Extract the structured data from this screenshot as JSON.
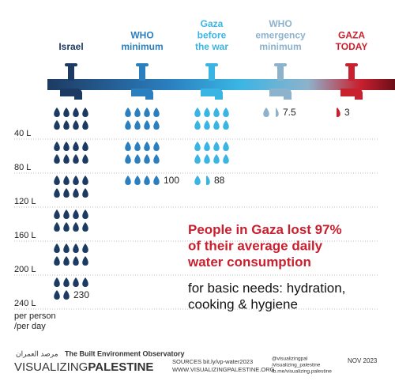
{
  "chart_data": {
    "type": "pictogram",
    "categories": [
      "Israel",
      "WHO\nminimum",
      "Gaza\nbefore\nthe war",
      "WHO\nemergency\nminimum",
      "GAZA\nTODAY"
    ],
    "values": [
      230,
      100,
      88,
      7.5,
      3
    ],
    "colors": [
      "#1d3a63",
      "#2b7fbf",
      "#3ab5e3",
      "#8db2cc",
      "#c9202f"
    ],
    "ylim": [
      0,
      240
    ],
    "yticks": [
      {
        "value": 40,
        "label": "40 L"
      },
      {
        "value": 80,
        "label": "80 L"
      },
      {
        "value": 120,
        "label": "120 L"
      },
      {
        "value": 160,
        "label": "160 L"
      },
      {
        "value": 200,
        "label": "200 L"
      },
      {
        "value": 240,
        "label": "240 L"
      }
    ],
    "grid": true,
    "y_label": "per person\n/per day",
    "headline": "People in Gaza lost 97%\nof their average daily\nwater consumption",
    "subheadline": "for basic needs: hydration,\ncooking & hygiene"
  },
  "footer": {
    "arabic": "مرصد العمران",
    "observatory": "The Built Environment Observatory",
    "brand_light": "VISUALIZING",
    "brand_bold": "PALESTINE",
    "sources": "SOURCES bit.ly/vp-water2023",
    "website": "WWW.VISUALIZINGPALESTINE.ORG",
    "social": [
      "@visualizingpal",
      "/visualizing_palestine",
      "fb.me/visualizing.palestine"
    ],
    "date": "NOV 2023"
  }
}
